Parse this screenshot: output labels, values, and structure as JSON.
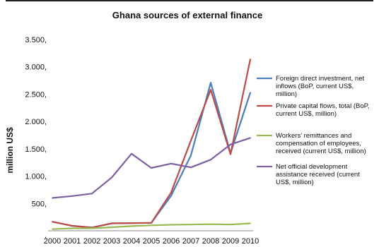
{
  "chart_data": {
    "type": "line",
    "title": "Ghana sources of external finance",
    "xlabel": "",
    "ylabel": "million US$",
    "categories": [
      "2000",
      "2001",
      "2002",
      "2003",
      "2004",
      "2005",
      "2006",
      "2007",
      "2008",
      "2009",
      "2010"
    ],
    "y_ticks": [
      "",
      "500,",
      "1.000,",
      "1.500,",
      "2.000,",
      "2.500,",
      "3.000,",
      "3.500,"
    ],
    "y_tick_values": [
      0,
      500,
      1000,
      1500,
      2000,
      2500,
      3000,
      3500
    ],
    "ylim": [
      0,
      3500
    ],
    "grid": false,
    "legend_position": "right",
    "series": [
      {
        "name": "Foreign direct investment, net inflows (BoP, current US$, million)",
        "color": "#4a7ebb",
        "values": [
          165,
          90,
          60,
          135,
          140,
          145,
          640,
          1380,
          2710,
          1420,
          2530
        ]
      },
      {
        "name": "Private capital flows, total (BoP, current US$, million)",
        "color": "#be4b48",
        "values": [
          165,
          90,
          60,
          135,
          140,
          145,
          700,
          1650,
          2580,
          1400,
          3140
        ]
      },
      {
        "name": "Workers' remittances and compensation of employees, received (current US$, million)",
        "color": "#98b954",
        "values": [
          30,
          45,
          45,
          65,
          85,
          100,
          110,
          115,
          120,
          115,
          135
        ]
      },
      {
        "name": "Net official development assistance received (current US$, million)",
        "color": "#7d60a0",
        "values": [
          600,
          635,
          680,
          975,
          1410,
          1150,
          1230,
          1160,
          1300,
          1580,
          1700
        ]
      }
    ]
  }
}
